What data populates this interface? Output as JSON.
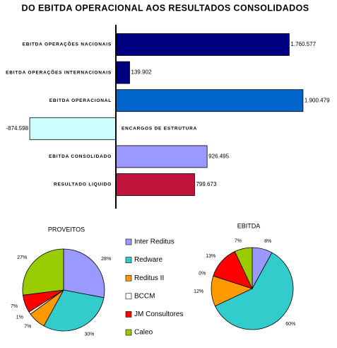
{
  "chart_data": [
    {
      "type": "hbar",
      "title": "DO EBITDA OPERACIONAL AOS RESULTADOS CONSOLIDADOS",
      "categories": [
        "EBITDA OPERAÇÕES NACIONAIS",
        "EBITDA OPERAÇÕES INTERNACIONAIS",
        "EBITDA OPERACIONAL",
        "ENCARGOS DE ESTRUTURA",
        "EBITDA CONSOLIDADO",
        "RESULTADO LIQUIDO"
      ],
      "values": [
        1760577,
        139902,
        1900479,
        -874598,
        926495,
        799673
      ],
      "value_labels": [
        "1.760.577",
        "139.902",
        "1.900.479",
        "-874.598",
        "926.495",
        "799.673"
      ],
      "colors": [
        "#000080",
        "#000080",
        "#0066cc",
        "#ccffff",
        "#9999ff",
        "#c0143c"
      ],
      "xlim": [
        -1000000,
        2000000
      ]
    },
    {
      "type": "pie",
      "title": "PROVEITOS",
      "categories": [
        "Inter Reditus",
        "Redware",
        "Reditus II",
        "BCCM",
        "JM Consultores",
        "Caleo"
      ],
      "values": [
        28,
        30,
        7,
        1,
        7,
        27
      ],
      "value_labels": [
        "28%",
        "30%",
        "7%",
        "1%",
        "7%",
        "27%"
      ],
      "colors": [
        "#9999ff",
        "#33cccc",
        "#ff9900",
        "#ffffff",
        "#ff0000",
        "#99cc00"
      ],
      "legend": true
    },
    {
      "type": "pie",
      "title": "EBITDA",
      "categories": [
        "Inter Reditus",
        "Redware",
        "Reditus II",
        "BCCM",
        "JM Consultores",
        "Caleo"
      ],
      "values": [
        8,
        60,
        12,
        0,
        13,
        7
      ],
      "value_labels": [
        "8%",
        "60%",
        "12%",
        "0%",
        "13%",
        "7%"
      ],
      "colors": [
        "#9999ff",
        "#33cccc",
        "#ff9900",
        "#ffffff",
        "#ff0000",
        "#99cc00"
      ],
      "legend": false
    }
  ]
}
